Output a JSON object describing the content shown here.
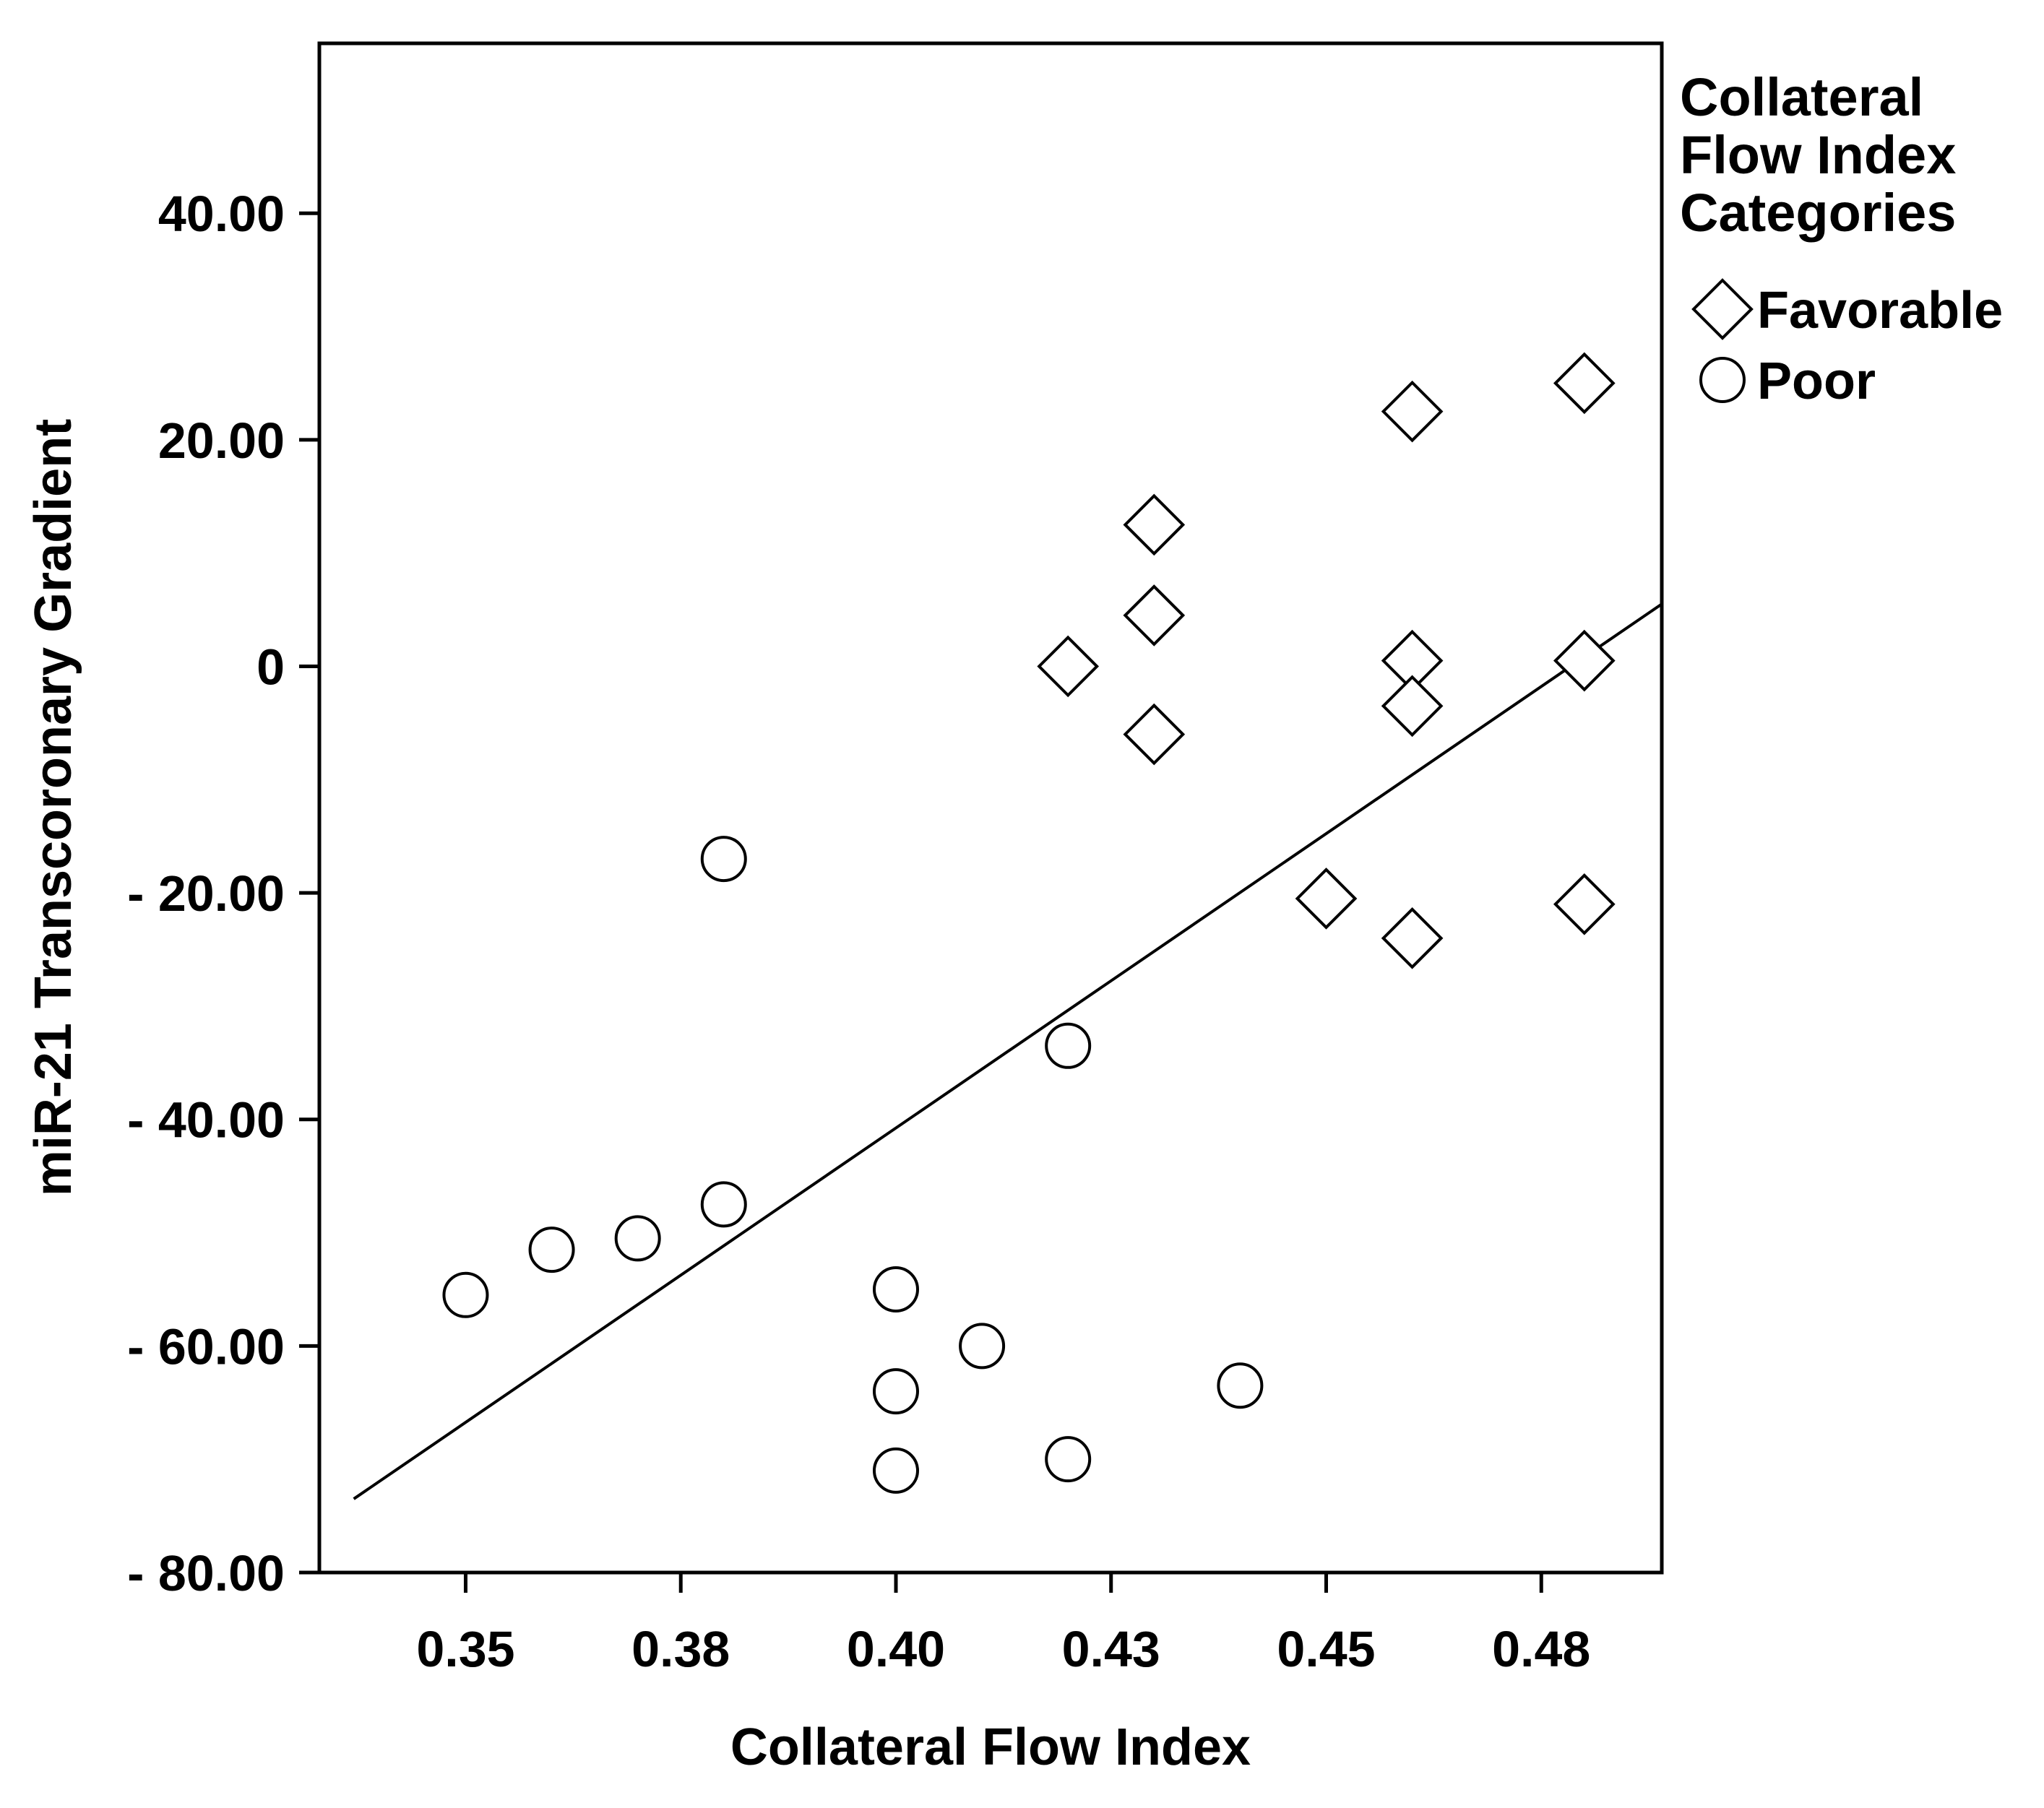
{
  "chart_data": {
    "type": "scatter",
    "xlabel": "Collateral Flow Index",
    "ylabel": "miR-21 Transcoronary Gradient",
    "xlim": [
      0.333,
      0.489
    ],
    "ylim": [
      -80,
      55
    ],
    "x_ticks": [
      {
        "value": 0.35,
        "label": "0.35"
      },
      {
        "value": 0.375,
        "label": "0.38"
      },
      {
        "value": 0.4,
        "label": "0.40"
      },
      {
        "value": 0.425,
        "label": "0.43"
      },
      {
        "value": 0.45,
        "label": "0.45"
      },
      {
        "value": 0.475,
        "label": "0.48"
      }
    ],
    "y_ticks": [
      {
        "value": 40,
        "label": "40.00"
      },
      {
        "value": 20,
        "label": "20.00"
      },
      {
        "value": 0,
        "label": "0"
      },
      {
        "value": -20,
        "label": "- 20.00"
      },
      {
        "value": -40,
        "label": "- 40.00"
      },
      {
        "value": -60,
        "label": "- 60.00"
      },
      {
        "value": -80,
        "label": "- 80.00"
      }
    ],
    "legend": {
      "title": [
        "Collateral",
        "Flow Index",
        "Categories"
      ],
      "position": "right-top"
    },
    "series": [
      {
        "name": "Favorable",
        "marker": "diamond",
        "points": [
          {
            "x": 0.42,
            "y": 0.0
          },
          {
            "x": 0.43,
            "y": 12.5
          },
          {
            "x": 0.43,
            "y": 4.5
          },
          {
            "x": 0.43,
            "y": -6.0
          },
          {
            "x": 0.45,
            "y": -20.5
          },
          {
            "x": 0.46,
            "y": 22.5
          },
          {
            "x": 0.46,
            "y": 0.5
          },
          {
            "x": 0.46,
            "y": -3.5
          },
          {
            "x": 0.46,
            "y": -24.0
          },
          {
            "x": 0.48,
            "y": 25.0
          },
          {
            "x": 0.48,
            "y": 0.5
          },
          {
            "x": 0.48,
            "y": -21.0
          }
        ]
      },
      {
        "name": "Poor",
        "marker": "circle",
        "points": [
          {
            "x": 0.35,
            "y": -55.5
          },
          {
            "x": 0.36,
            "y": -51.5
          },
          {
            "x": 0.37,
            "y": -50.5
          },
          {
            "x": 0.38,
            "y": -17.0
          },
          {
            "x": 0.38,
            "y": -47.5
          },
          {
            "x": 0.4,
            "y": -55.0
          },
          {
            "x": 0.4,
            "y": -64.0
          },
          {
            "x": 0.4,
            "y": -71.0
          },
          {
            "x": 0.41,
            "y": -60.0
          },
          {
            "x": 0.42,
            "y": -33.5
          },
          {
            "x": 0.42,
            "y": -70.0
          },
          {
            "x": 0.44,
            "y": -63.5
          }
        ]
      }
    ],
    "fit_line": {
      "x": [
        0.337,
        0.489
      ],
      "y": [
        -73.5,
        5.5
      ]
    },
    "grid": false
  }
}
